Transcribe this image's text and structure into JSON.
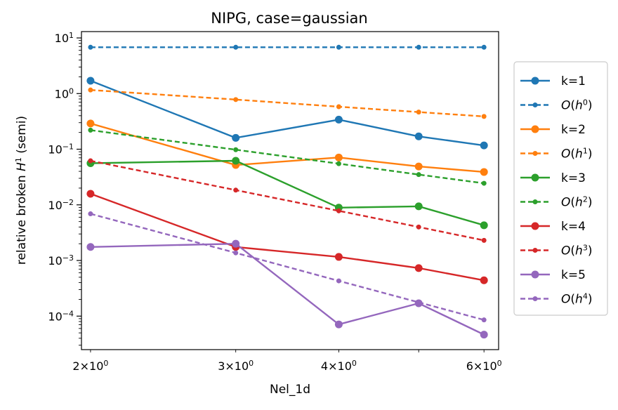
{
  "chart_data": {
    "type": "line",
    "title": "NIPG, case=gaussian",
    "xlabel": "Nel_1d",
    "ylabel": "relative broken H1 (semi)",
    "xscale": "log",
    "yscale": "log",
    "xlim": [
      1.95,
      6.25
    ],
    "ylim": [
      2.5e-05,
      13
    ],
    "x": [
      2,
      3,
      4,
      5,
      6
    ],
    "xtick_labels": [
      {
        "x": 2,
        "mant": "2",
        "exp": "0"
      },
      {
        "x": 3,
        "mant": "3",
        "exp": "0"
      },
      {
        "x": 4,
        "mant": "4",
        "exp": "0"
      },
      {
        "x": 6,
        "mant": "6",
        "exp": "0"
      }
    ],
    "ytick_labels": [
      {
        "y": 10,
        "exp": "1"
      },
      {
        "y": 1,
        "exp": "0"
      },
      {
        "y": 0.1,
        "exp": "−1"
      },
      {
        "y": 0.01,
        "exp": "−2"
      },
      {
        "y": 0.001,
        "exp": "−3"
      },
      {
        "y": 0.0001,
        "exp": "−4"
      }
    ],
    "legend_position": "right, outside",
    "series": [
      {
        "name": "k=1",
        "style": "solid",
        "color": "#1f77b4",
        "values": [
          1.7,
          0.16,
          0.34,
          0.17,
          0.117
        ]
      },
      {
        "name": "O(h0)",
        "name_base": "O(h",
        "name_exp": "0",
        "style": "dashed",
        "color": "#1f77b4",
        "values": [
          6.8,
          6.8,
          6.8,
          6.8,
          6.8
        ]
      },
      {
        "name": "k=2",
        "style": "solid",
        "color": "#ff7f0e",
        "values": [
          0.29,
          0.052,
          0.071,
          0.049,
          0.039
        ]
      },
      {
        "name": "O(h1)",
        "name_base": "O(h",
        "name_exp": "1",
        "style": "dashed",
        "color": "#ff7f0e",
        "values": [
          1.16,
          0.78,
          0.58,
          0.465,
          0.388
        ]
      },
      {
        "name": "k=3",
        "style": "solid",
        "color": "#2ca02c",
        "values": [
          0.056,
          0.062,
          0.0089,
          0.0094,
          0.0043
        ]
      },
      {
        "name": "O(h2)",
        "name_base": "O(h",
        "name_exp": "2",
        "style": "dashed",
        "color": "#2ca02c",
        "values": [
          0.22,
          0.098,
          0.055,
          0.035,
          0.0244
        ]
      },
      {
        "name": "k=4",
        "style": "solid",
        "color": "#d62728",
        "values": [
          0.0158,
          0.00175,
          0.00116,
          0.00073,
          0.00044
        ]
      },
      {
        "name": "O(h3)",
        "name_base": "O(h",
        "name_exp": "3",
        "style": "dashed",
        "color": "#d62728",
        "values": [
          0.062,
          0.0184,
          0.0078,
          0.004,
          0.0023
        ]
      },
      {
        "name": "k=5",
        "style": "solid",
        "color": "#9467bd",
        "values": [
          0.00175,
          0.002,
          7.1e-05,
          0.00017,
          4.65e-05
        ]
      },
      {
        "name": "O(h4)",
        "name_base": "O(h",
        "name_exp": "4",
        "style": "dashed",
        "color": "#9467bd",
        "values": [
          0.0069,
          0.00137,
          0.00043,
          0.000177,
          8.55e-05
        ]
      }
    ]
  }
}
